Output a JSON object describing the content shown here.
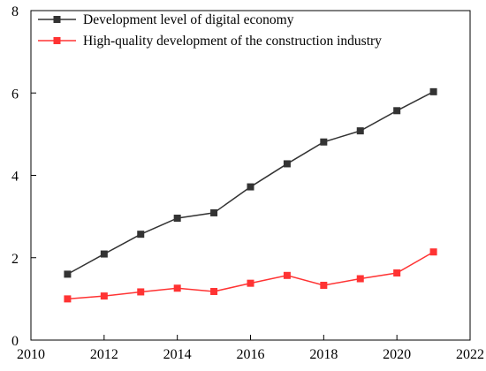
{
  "chart_data": {
    "type": "line",
    "title": "",
    "xlabel": "",
    "ylabel": "",
    "xlim": [
      2010,
      2022
    ],
    "ylim": [
      0,
      8
    ],
    "x_ticks": [
      2010,
      2012,
      2014,
      2016,
      2018,
      2020,
      2022
    ],
    "y_ticks": [
      0,
      2,
      4,
      6,
      8
    ],
    "grid": false,
    "legend_position": "top-left",
    "x": [
      2011,
      2012,
      2013,
      2014,
      2015,
      2016,
      2017,
      2018,
      2019,
      2020,
      2021
    ],
    "series": [
      {
        "name": "Development level of digital economy",
        "color": "#333333",
        "marker": "square",
        "values": [
          1.6,
          2.09,
          2.57,
          2.96,
          3.09,
          3.72,
          4.28,
          4.81,
          5.08,
          5.57,
          6.03
        ]
      },
      {
        "name": "High-quality development of the construction industry",
        "color": "#ff3333",
        "marker": "square",
        "values": [
          1.0,
          1.07,
          1.17,
          1.26,
          1.18,
          1.38,
          1.57,
          1.33,
          1.49,
          1.63,
          2.14
        ]
      }
    ]
  }
}
